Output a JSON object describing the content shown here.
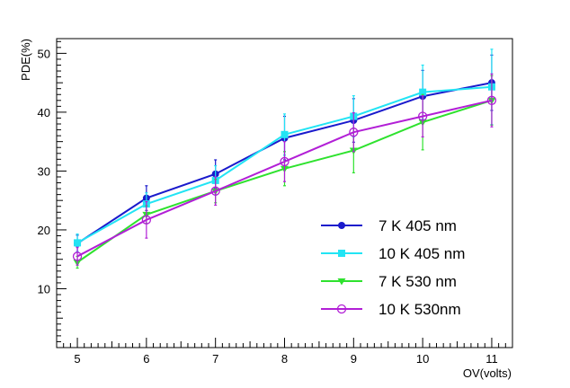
{
  "chart_data": {
    "type": "line",
    "title": "",
    "xlabel": "OV(volts)",
    "ylabel": "PDE(%)",
    "xlim": [
      4.7,
      11.3
    ],
    "ylim": [
      0,
      52.5
    ],
    "x": [
      5,
      6,
      7,
      8,
      9,
      10,
      11
    ],
    "xticks": [
      5,
      6,
      7,
      8,
      9,
      10,
      11
    ],
    "yticks": [
      10,
      20,
      30,
      40,
      50
    ],
    "legend_position": "lower-right",
    "series": [
      {
        "name": "7 K 405 nm",
        "color": "#1a1acc",
        "marker": "filled-circle",
        "values": [
          17.7,
          25.4,
          29.5,
          35.6,
          38.6,
          42.7,
          45.0
        ],
        "errors": [
          1.4,
          2.1,
          2.4,
          3.7,
          3.7,
          4.4,
          4.7
        ]
      },
      {
        "name": "10 K 405 nm",
        "color": "#22e4f4",
        "marker": "filled-square",
        "values": [
          17.8,
          24.4,
          28.4,
          36.2,
          39.3,
          43.4,
          44.3
        ],
        "errors": [
          1.5,
          1.9,
          2.5,
          3.5,
          3.5,
          4.6,
          6.4
        ]
      },
      {
        "name": "7 K 530 nm",
        "color": "#2ee22e",
        "marker": "filled-triangle-down",
        "values": [
          14.5,
          22.6,
          26.6,
          30.4,
          33.5,
          38.3,
          42.0
        ],
        "errors": [
          1.0,
          1.5,
          2.0,
          2.9,
          3.8,
          4.7,
          4.2
        ]
      },
      {
        "name": "10 K 530nm",
        "color": "#b21fd6",
        "marker": "open-circle",
        "values": [
          15.5,
          21.7,
          26.6,
          31.6,
          36.6,
          39.3,
          42.0
        ],
        "errors": [
          1.5,
          3.1,
          2.4,
          3.4,
          3.3,
          3.5,
          4.5
        ]
      }
    ]
  }
}
